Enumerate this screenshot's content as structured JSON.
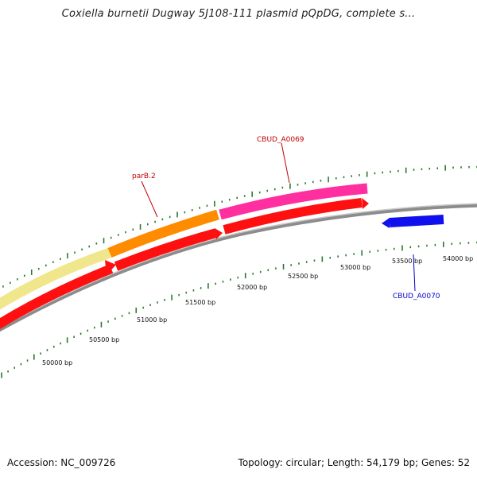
{
  "title": "Coxiella burnetii Dugway 5J108-111 plasmid pQpDG, complete s...",
  "footer": {
    "accession": "Accession: NC_009726",
    "summary": "Topology: circular; Length: 54,179 bp; Genes: 52"
  },
  "colors": {
    "backbone": "#8c8c8c",
    "tick": "#2b7a2b",
    "red_label": "#c00000",
    "blue_label": "#0000cc",
    "gene_red": "#ff1010",
    "gene_pink": "#ff2fa0",
    "gene_orange": "#ff8c00",
    "gene_yellow": "#f0e68c",
    "gene_blue": "#1010ee"
  },
  "ticks": [
    {
      "label": "50000 bp"
    },
    {
      "label": "50500 bp"
    },
    {
      "label": "51000 bp"
    },
    {
      "label": "51500 bp"
    },
    {
      "label": "52000 bp"
    },
    {
      "label": "52500 bp"
    },
    {
      "label": "53000 bp"
    },
    {
      "label": "53500 bp"
    },
    {
      "label": "54000 bp"
    }
  ],
  "genes": [
    {
      "label": "parB.2",
      "color": "red_label"
    },
    {
      "label": "CBUD_A0069",
      "color": "red_label"
    },
    {
      "label": "CBUD_A0070",
      "color": "blue_label"
    }
  ]
}
